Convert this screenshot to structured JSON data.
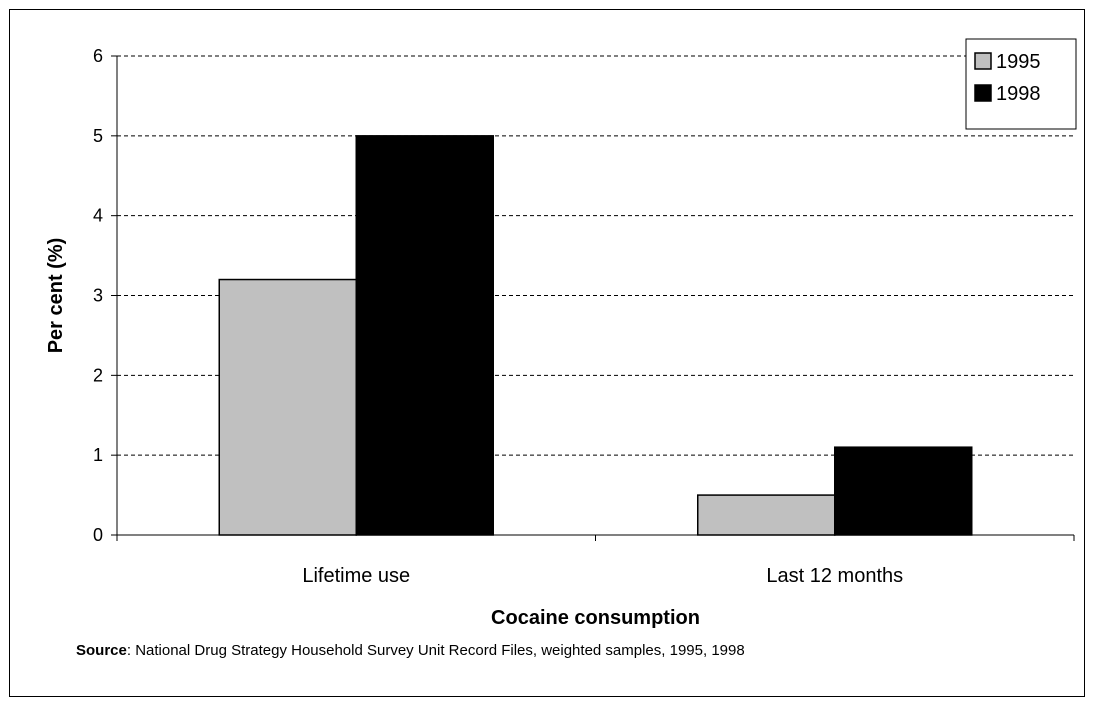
{
  "chart_data": {
    "type": "bar",
    "categories": [
      "Lifetime use",
      "Last 12 months"
    ],
    "series": [
      {
        "name": "1995",
        "values": [
          3.2,
          0.5
        ],
        "color": "#c0c0c0"
      },
      {
        "name": "1998",
        "values": [
          5.0,
          1.1
        ],
        "color": "#000000"
      }
    ],
    "xlabel": "Cocaine consumption",
    "ylabel": "Per cent (%)",
    "ylim": [
      0,
      6
    ],
    "yticks": [
      "0",
      "1",
      "2",
      "3",
      "4",
      "5",
      "6"
    ],
    "grid": true,
    "legend_position": "top-right"
  },
  "source": {
    "label": "Source",
    "text": ": National Drug Strategy Household Survey Unit Record Files, weighted samples, 1995, 1998"
  }
}
